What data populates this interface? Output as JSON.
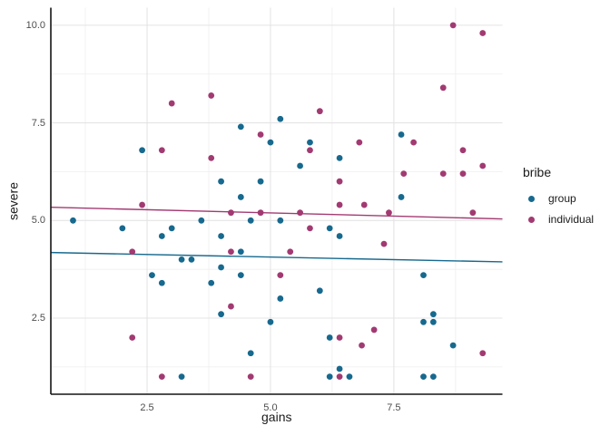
{
  "figure": {
    "background": "#ffffff",
    "axis_line_color": "#141414",
    "tick_label_color": "#4d4d4d",
    "text_color": "#1a1a1a"
  },
  "chart_data": {
    "type": "scatter",
    "title": "",
    "xlabel": "gains",
    "ylabel": "severe",
    "xlim": [
      0.55,
      9.7
    ],
    "ylim": [
      0.55,
      10.45
    ],
    "grid": {
      "show_major": true,
      "show_minor": true,
      "major_color": "#e4e4e4",
      "minor_color": "#f0f0f0"
    },
    "x_ticks": [
      {
        "value": 2.5,
        "label": "2.5"
      },
      {
        "value": 5.0,
        "label": "5.0"
      },
      {
        "value": 7.5,
        "label": "7.5"
      }
    ],
    "y_ticks": [
      {
        "value": 2.5,
        "label": "2.5"
      },
      {
        "value": 5.0,
        "label": "5.0"
      },
      {
        "value": 7.5,
        "label": "7.5"
      },
      {
        "value": 10.0,
        "label": "10.0"
      }
    ],
    "x_minor_ticks": [
      1.25,
      3.75,
      6.25,
      8.75
    ],
    "y_minor_ticks": [
      1.25,
      3.75,
      6.25,
      8.75
    ],
    "legend": {
      "title": "bribe",
      "position": "right"
    },
    "point_radius": 3.4,
    "series": [
      {
        "name": "group",
        "color": "#17698e",
        "trend": {
          "x1": 0.55,
          "y1": 4.18,
          "x2": 9.7,
          "y2": 3.94
        },
        "points": [
          [
            1.0,
            5.0
          ],
          [
            2.0,
            4.8
          ],
          [
            2.4,
            6.8
          ],
          [
            2.6,
            3.6
          ],
          [
            2.8,
            4.6
          ],
          [
            2.8,
            3.4
          ],
          [
            3.0,
            4.8
          ],
          [
            3.2,
            4.0
          ],
          [
            3.4,
            4.0
          ],
          [
            3.2,
            1.0
          ],
          [
            3.6,
            5.0
          ],
          [
            3.8,
            3.4
          ],
          [
            4.0,
            6.0
          ],
          [
            4.0,
            4.6
          ],
          [
            4.0,
            3.8
          ],
          [
            4.0,
            2.6
          ],
          [
            4.4,
            7.4
          ],
          [
            4.4,
            5.6
          ],
          [
            4.4,
            4.2
          ],
          [
            4.4,
            3.6
          ],
          [
            4.6,
            5.0
          ],
          [
            4.6,
            1.6
          ],
          [
            4.8,
            6.0
          ],
          [
            5.0,
            7.0
          ],
          [
            5.0,
            2.4
          ],
          [
            5.2,
            7.6
          ],
          [
            5.2,
            5.0
          ],
          [
            5.2,
            3.0
          ],
          [
            5.6,
            6.4
          ],
          [
            5.8,
            7.0
          ],
          [
            6.0,
            3.2
          ],
          [
            6.2,
            4.8
          ],
          [
            6.2,
            2.0
          ],
          [
            6.2,
            1.0
          ],
          [
            6.4,
            6.6
          ],
          [
            6.4,
            4.6
          ],
          [
            6.4,
            1.2
          ],
          [
            6.6,
            1.0
          ],
          [
            7.65,
            7.2
          ],
          [
            7.65,
            5.6
          ],
          [
            8.1,
            3.6
          ],
          [
            8.3,
            2.6
          ],
          [
            8.1,
            2.4
          ],
          [
            8.3,
            2.4
          ],
          [
            8.7,
            1.8
          ],
          [
            8.1,
            1.0
          ],
          [
            8.3,
            1.0
          ]
        ]
      },
      {
        "name": "individual",
        "color": "#a23a72",
        "trend": {
          "x1": 0.55,
          "y1": 5.34,
          "x2": 9.7,
          "y2": 5.04
        },
        "points": [
          [
            2.2,
            4.2
          ],
          [
            2.2,
            2.0
          ],
          [
            2.4,
            5.4
          ],
          [
            2.8,
            6.8
          ],
          [
            2.8,
            1.0
          ],
          [
            3.0,
            8.0
          ],
          [
            3.8,
            8.2
          ],
          [
            3.8,
            6.6
          ],
          [
            4.2,
            5.2
          ],
          [
            4.2,
            4.2
          ],
          [
            4.2,
            2.8
          ],
          [
            4.6,
            1.0
          ],
          [
            4.8,
            7.2
          ],
          [
            4.8,
            5.2
          ],
          [
            5.2,
            3.6
          ],
          [
            5.4,
            4.2
          ],
          [
            5.6,
            5.2
          ],
          [
            5.8,
            6.8
          ],
          [
            5.8,
            4.8
          ],
          [
            6.0,
            7.8
          ],
          [
            6.4,
            6.0
          ],
          [
            6.4,
            5.4
          ],
          [
            6.4,
            2.0
          ],
          [
            6.4,
            1.0
          ],
          [
            6.8,
            7.0
          ],
          [
            6.9,
            5.4
          ],
          [
            6.85,
            1.8
          ],
          [
            7.1,
            2.2
          ],
          [
            7.7,
            6.2
          ],
          [
            7.3,
            4.4
          ],
          [
            7.4,
            5.2
          ],
          [
            7.9,
            7.0
          ],
          [
            8.5,
            6.2
          ],
          [
            8.5,
            8.4
          ],
          [
            8.7,
            10.0
          ],
          [
            8.9,
            6.8
          ],
          [
            8.9,
            6.2
          ],
          [
            9.1,
            5.2
          ],
          [
            9.3,
            9.8
          ],
          [
            9.3,
            6.4
          ],
          [
            9.3,
            1.6
          ]
        ]
      }
    ]
  }
}
